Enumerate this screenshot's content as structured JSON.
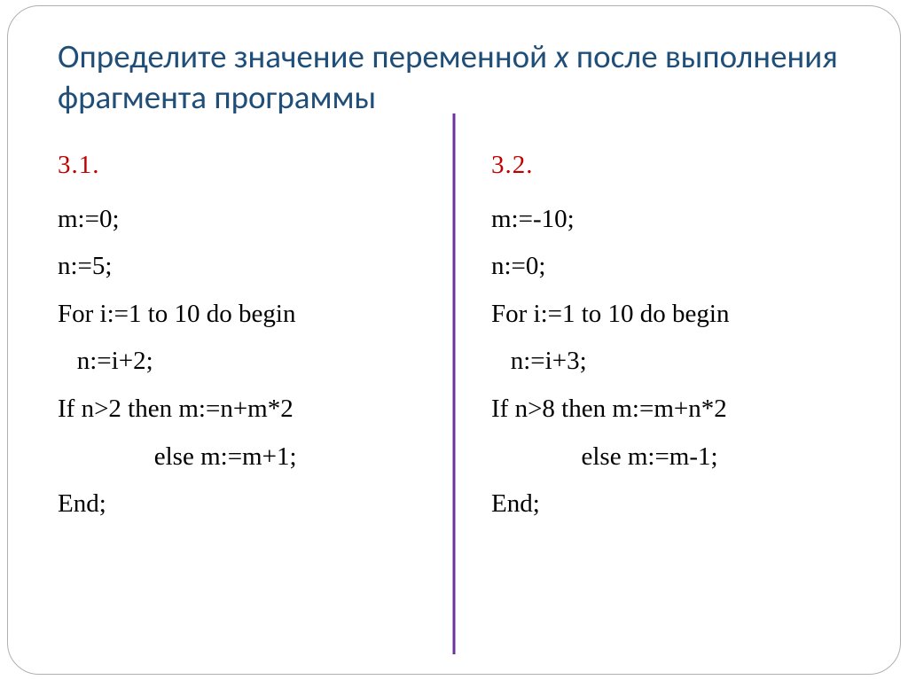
{
  "title_part1": "Определите значение переменной ",
  "title_var": "x",
  "title_part2": " после выполнения фрагмента программы",
  "colors": {
    "title": "#1f4e79",
    "problem_number": "#c00000",
    "code_text": "#000000",
    "divider": "#7030a0",
    "frame_border": "#b0b0b0",
    "background": "#ffffff"
  },
  "fontsize": {
    "title": 37,
    "problem_number": 29,
    "code": 29
  },
  "left": {
    "number": "3.1.",
    "lines": [
      "m:=0;",
      "n:=5;",
      "For i:=1 to 10 do begin",
      "   n:=i+2;",
      "If n>2 then m:=n+m*2",
      "               else m:=m+1;",
      "End;"
    ]
  },
  "right": {
    "number": "3.2.",
    "lines": [
      "m:=-10;",
      "n:=0;",
      "For i:=1 to 10 do begin",
      "   n:=i+3;",
      "If n>8 then m:=m+n*2",
      "              else m:=m-1;",
      "End;"
    ]
  }
}
